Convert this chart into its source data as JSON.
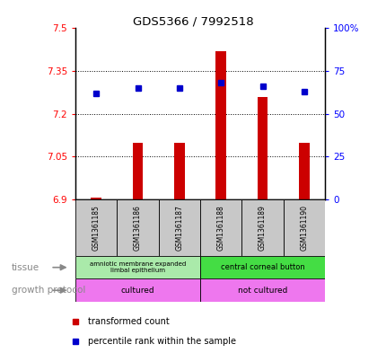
{
  "title": "GDS5366 / 7992518",
  "samples": [
    "GSM1361185",
    "GSM1361186",
    "GSM1361187",
    "GSM1361188",
    "GSM1361189",
    "GSM1361190"
  ],
  "red_values": [
    6.905,
    7.1,
    7.1,
    7.42,
    7.26,
    7.1
  ],
  "blue_percentiles": [
    62,
    65,
    65,
    68,
    66,
    63
  ],
  "ylim_left": [
    6.9,
    7.5
  ],
  "ylim_right": [
    0,
    100
  ],
  "yticks_left": [
    6.9,
    7.05,
    7.2,
    7.35,
    7.5
  ],
  "ytick_labels_left": [
    "6.9",
    "7.05",
    "7.2",
    "7.35",
    "7.5"
  ],
  "yticks_right": [
    0,
    25,
    50,
    75,
    100
  ],
  "ytick_labels_right": [
    "0",
    "25",
    "50",
    "75",
    "100%"
  ],
  "tissue_label": "tissue",
  "growth_label": "growth protocol",
  "tissue_group1_label": "amniotic membrane expanded\nlimbal epithelium",
  "tissue_group1_color": "#aaeaaa",
  "tissue_group2_label": "central corneal button",
  "tissue_group2_color": "#44dd44",
  "growth_group1_label": "cultured",
  "growth_group2_label": "not cultured",
  "growth_color": "#ee77ee",
  "legend_red_label": "transformed count",
  "legend_blue_label": "percentile rank within the sample",
  "red_color": "#cc0000",
  "blue_color": "#0000cc",
  "bar_base": 6.9,
  "gray_box_color": "#c8c8c8",
  "bar_width": 0.25
}
